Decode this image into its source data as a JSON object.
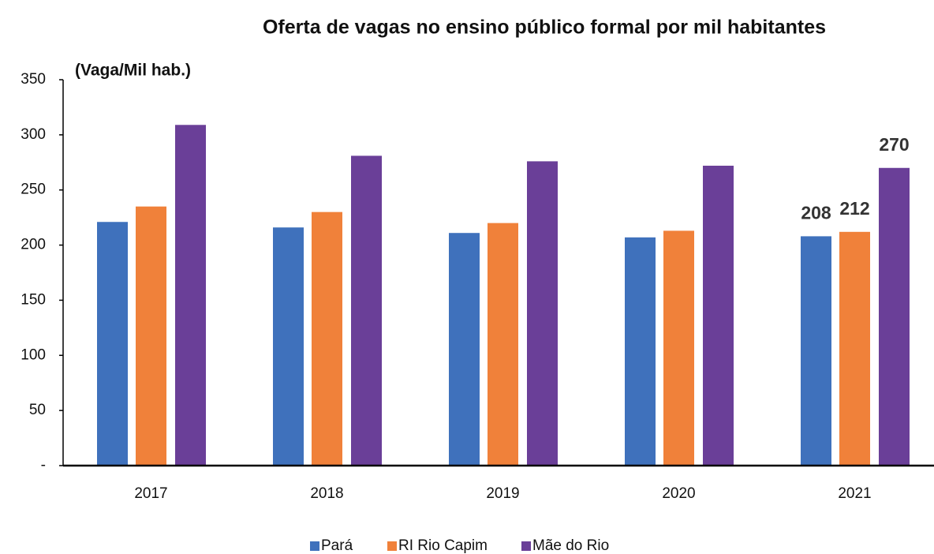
{
  "chart_data": {
    "type": "bar",
    "title": "Oferta de vagas no ensino público formal por mil habitantes",
    "y_label": "(Vaga/Mil hab.)",
    "categories": [
      "2017",
      "2018",
      "2019",
      "2020",
      "2021"
    ],
    "series": [
      {
        "name": "Pará",
        "color": "#3f71bc",
        "values": [
          221,
          216,
          211,
          207,
          208
        ],
        "value_labels": [
          null,
          null,
          null,
          null,
          "208"
        ]
      },
      {
        "name": "RI Rio Capim",
        "color": "#f0813a",
        "values": [
          235,
          230,
          220,
          213,
          212
        ],
        "value_labels": [
          null,
          null,
          null,
          null,
          "212"
        ]
      },
      {
        "name": "Mãe do Rio",
        "color": "#6a3f98",
        "values": [
          309,
          281,
          276,
          272,
          270
        ],
        "value_labels": [
          null,
          null,
          null,
          null,
          "270"
        ]
      }
    ],
    "ylim": [
      0,
      350
    ],
    "yticks": [
      {
        "value": 0,
        "label": "-"
      },
      50,
      100,
      150,
      200,
      250,
      300,
      350
    ],
    "grid": false,
    "legend": "bottom"
  }
}
